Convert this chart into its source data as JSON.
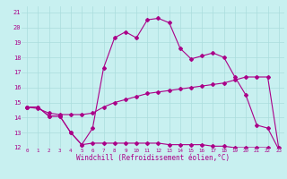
{
  "xlabel": "Windchill (Refroidissement éolien,°C)",
  "bg_color": "#c8f0f0",
  "grid_color": "#aadddd",
  "line_color": "#aa0088",
  "xlim": [
    -0.5,
    23.5
  ],
  "ylim": [
    12,
    21.4
  ],
  "xtick_labels": [
    "0",
    "1",
    "2",
    "3",
    "4",
    "5",
    "6",
    "7",
    "8",
    "9",
    "10",
    "11",
    "12",
    "13",
    "14",
    "15",
    "16",
    "17",
    "18",
    "19",
    "20",
    "21",
    "22",
    "23"
  ],
  "ytick_labels": [
    "12",
    "13",
    "14",
    "15",
    "16",
    "17",
    "18",
    "19",
    "20",
    "21"
  ],
  "line1_x": [
    0,
    1,
    2,
    3,
    4,
    5,
    6,
    7,
    8,
    9,
    10,
    11,
    12,
    13,
    14,
    15,
    16,
    17,
    18,
    19,
    20,
    21,
    22,
    23
  ],
  "line1_y": [
    14.7,
    14.7,
    14.1,
    14.1,
    13.0,
    12.2,
    13.3,
    17.3,
    19.3,
    19.7,
    19.3,
    20.5,
    20.6,
    20.3,
    18.6,
    17.9,
    18.1,
    18.3,
    18.0,
    16.7,
    15.5,
    13.5,
    13.3,
    11.9
  ],
  "line2_x": [
    0,
    1,
    2,
    3,
    4,
    5,
    6,
    7,
    8,
    9,
    10,
    11,
    12,
    13,
    14,
    15,
    16,
    17,
    18,
    19,
    20,
    21,
    22,
    23
  ],
  "line2_y": [
    14.7,
    14.6,
    14.3,
    14.2,
    14.2,
    14.2,
    14.3,
    14.7,
    15.0,
    15.2,
    15.4,
    15.6,
    15.7,
    15.8,
    15.9,
    16.0,
    16.1,
    16.2,
    16.3,
    16.5,
    16.7,
    16.7,
    16.7,
    12.0
  ],
  "line3_x": [
    0,
    1,
    2,
    3,
    4,
    5,
    6,
    7,
    8,
    9,
    10,
    11,
    12,
    13,
    14,
    15,
    16,
    17,
    18,
    19,
    20,
    21,
    22,
    23
  ],
  "line3_y": [
    14.7,
    14.7,
    14.1,
    14.1,
    13.0,
    12.2,
    12.3,
    12.3,
    12.3,
    12.3,
    12.3,
    12.3,
    12.3,
    12.2,
    12.2,
    12.2,
    12.2,
    12.1,
    12.1,
    12.0,
    12.0,
    12.0,
    12.0,
    11.9
  ]
}
